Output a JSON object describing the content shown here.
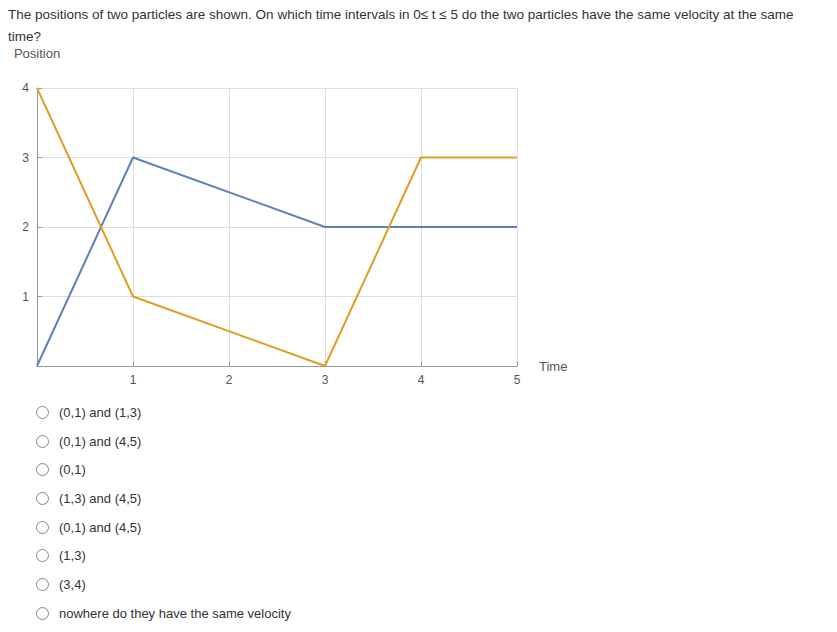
{
  "question": "The positions of two particles are shown. On which time intervals in 0≤ t ≤ 5 do the two particles have the same velocity at the same time?",
  "options": [
    "(0,1) and (1,3)",
    "(0,1) and (4,5)",
    "(0,1)",
    "(1,3) and (4,5)",
    "(0,1) and (4,5)",
    "(1,3)",
    "(3,4)",
    "nowhere do they have the same velocity"
  ],
  "chart_data": {
    "type": "line",
    "x_label": "Time",
    "y_label": "Position",
    "x": [
      0,
      1,
      3,
      4,
      5
    ],
    "series": [
      {
        "color": "#5e81b5",
        "values": [
          0,
          3,
          2,
          2,
          2
        ]
      },
      {
        "color": "#e19c24",
        "values": [
          4,
          1,
          0,
          3,
          3
        ]
      }
    ],
    "xlim": [
      0,
      5
    ],
    "xticks": [
      1,
      2,
      3,
      4,
      5
    ],
    "ylim": [
      0,
      4
    ],
    "yticks": [
      1,
      2,
      3,
      4
    ],
    "grid": true
  }
}
